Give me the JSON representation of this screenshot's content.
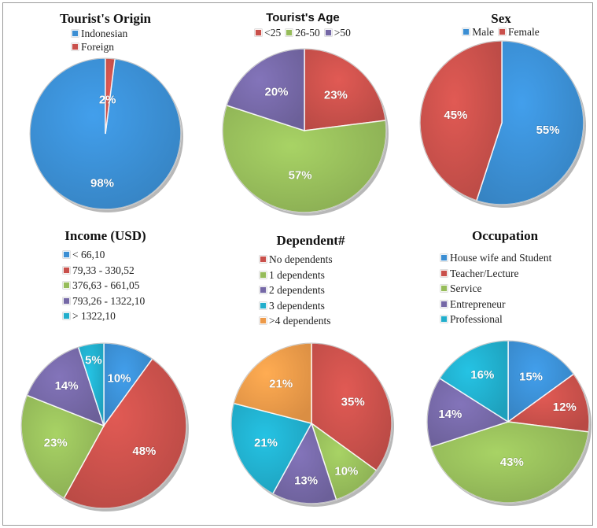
{
  "colors": {
    "blue": "#3B8ED3",
    "red": "#C9504B",
    "green": "#96BC5A",
    "purple": "#7568A6",
    "cyan": "#21AECC",
    "orange": "#ED9A49"
  },
  "chart_data": [
    {
      "type": "pie",
      "title": "Tourist's Origin",
      "labels": [
        "Indonesian",
        "Foreign"
      ],
      "values": [
        98,
        2
      ],
      "value_labels": [
        "98%",
        "2%"
      ],
      "colors": [
        "#3B8ED3",
        "#C9504B"
      ],
      "legend_position": "top"
    },
    {
      "type": "pie",
      "title": "Tourist's Age",
      "labels": [
        "<25",
        "26-50",
        ">50"
      ],
      "values": [
        23,
        57,
        20
      ],
      "value_labels": [
        "23%",
        "57%",
        "20%"
      ],
      "colors": [
        "#C9504B",
        "#96BC5A",
        "#7568A6"
      ],
      "legend_position": "top"
    },
    {
      "type": "pie",
      "title": "Sex",
      "labels": [
        "Male",
        "Female"
      ],
      "values": [
        55,
        45
      ],
      "value_labels": [
        "55%",
        "45%"
      ],
      "colors": [
        "#3B8ED3",
        "#C9504B"
      ],
      "legend_position": "top"
    },
    {
      "type": "pie",
      "title": "Income (USD)",
      "labels": [
        "< 66,10",
        "79,33 - 330,52",
        "376,63 - 661,05",
        "793,26 - 1322,10",
        "> 1322,10"
      ],
      "values": [
        10,
        48,
        23,
        14,
        5
      ],
      "value_labels": [
        "10%",
        "48%",
        "23%",
        "14%",
        "5%"
      ],
      "colors": [
        "#3B8ED3",
        "#C9504B",
        "#96BC5A",
        "#7568A6",
        "#21AECC"
      ],
      "legend_position": "top-left"
    },
    {
      "type": "pie",
      "title": "Dependent#",
      "labels": [
        "No dependents",
        "1 dependents",
        "2 dependents",
        "3 dependents",
        ">4 dependents"
      ],
      "values": [
        35,
        10,
        13,
        21,
        21
      ],
      "value_labels": [
        "35%",
        "10%",
        "13%",
        "21%",
        "21%"
      ],
      "colors": [
        "#C9504B",
        "#96BC5A",
        "#7568A6",
        "#21AECC",
        "#ED9A49"
      ],
      "legend_position": "top-left"
    },
    {
      "type": "pie",
      "title": "Occupation",
      "labels": [
        "House wife and Student",
        "Teacher/Lecture",
        "Service",
        "Entrepreneur",
        "Professional"
      ],
      "values": [
        15,
        12,
        43,
        14,
        16
      ],
      "value_labels": [
        "15%",
        "12%",
        "43%",
        "14%",
        "16%"
      ],
      "colors": [
        "#3B8ED3",
        "#C9504B",
        "#96BC5A",
        "#7568A6",
        "#21AECC"
      ],
      "legend_position": "top-left"
    }
  ]
}
